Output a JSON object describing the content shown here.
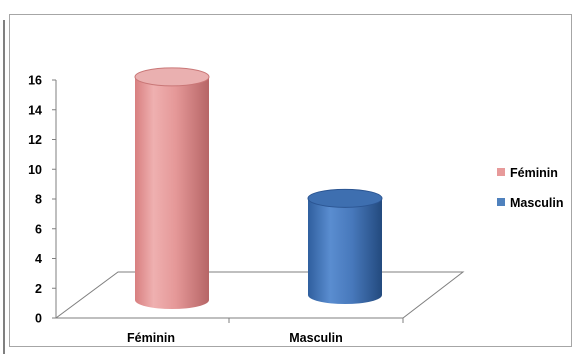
{
  "chart_data": {
    "type": "bar",
    "style": "3d-cylinder",
    "categories": [
      "Féminin",
      "Masculin"
    ],
    "values": [
      15,
      6.5
    ],
    "legend": [
      "Féminin",
      "Masculin"
    ],
    "legend_position": "right",
    "title": "",
    "xlabel": "",
    "ylabel": "",
    "ylim": [
      0,
      16
    ],
    "yticks": [
      "0",
      "2",
      "4",
      "6",
      "8",
      "10",
      "12",
      "14",
      "16"
    ],
    "grid": false,
    "colors": {
      "feminin": "#e79a9a",
      "masculin": "#4f81bd"
    }
  }
}
